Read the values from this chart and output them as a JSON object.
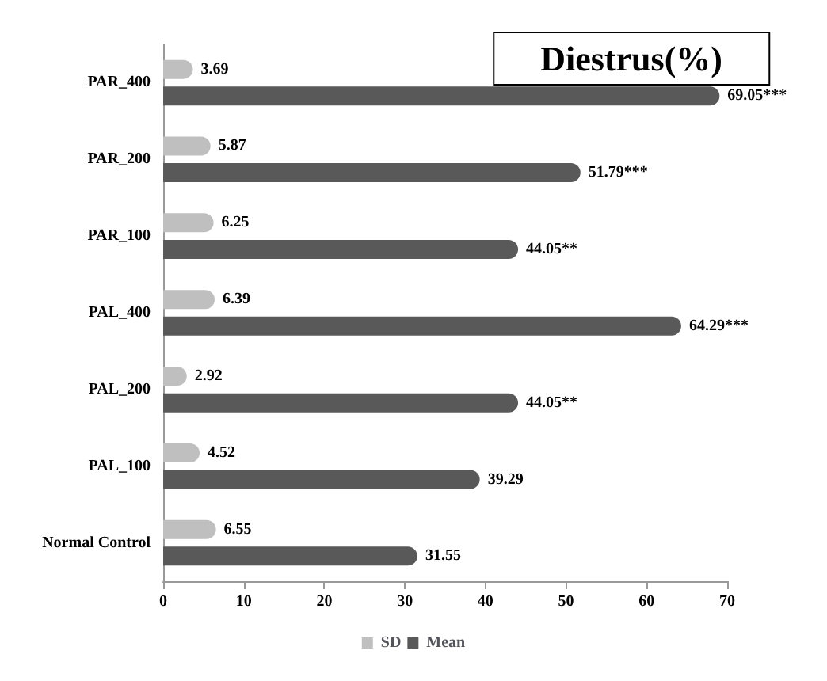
{
  "chart_data": {
    "type": "bar",
    "orientation": "horizontal",
    "title": "Diestrus(%)",
    "categories": [
      "PAR_400",
      "PAR_200",
      "PAR_100",
      "PAL_400",
      "PAL_200",
      "PAL_100",
      "Normal Control"
    ],
    "series": [
      {
        "name": "SD",
        "color": "#bfbfbf",
        "values": [
          3.69,
          5.87,
          6.25,
          6.39,
          2.92,
          4.52,
          6.55
        ],
        "value_labels": [
          "3.69",
          "5.87",
          "6.25",
          "6.39",
          "2.92",
          "4.52",
          "6.55"
        ]
      },
      {
        "name": "Mean",
        "color": "#595959",
        "values": [
          69.05,
          51.79,
          44.05,
          64.29,
          44.05,
          39.29,
          31.55
        ],
        "value_labels": [
          "69.05***",
          "51.79***",
          "44.05**",
          "64.29***",
          "44.05**",
          "39.29",
          "31.55"
        ]
      }
    ],
    "xlim": [
      0,
      70
    ],
    "xticks": [
      0,
      10,
      20,
      30,
      40,
      50,
      60,
      70
    ],
    "grid": false,
    "legend": "bottom"
  }
}
